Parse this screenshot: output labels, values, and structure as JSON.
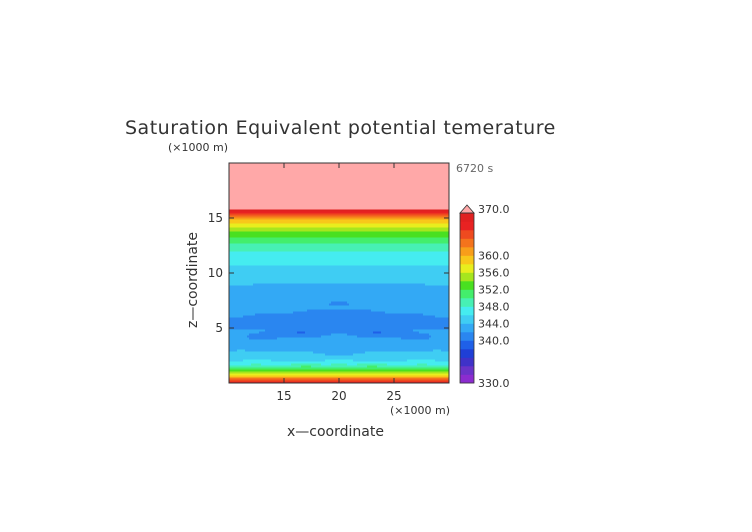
{
  "chart_data": {
    "type": "heatmap",
    "title": "Saturation Equivalent potential temerature",
    "time_label": "6720 s",
    "xlabel": "x—coordinate",
    "ylabel": "z—coordinate",
    "x_unit": "(×1000 m)",
    "y_unit": "(×1000 m)",
    "xlim": [
      10,
      30
    ],
    "ylim": [
      0,
      20
    ],
    "x_ticks": [
      "15",
      "20",
      "25"
    ],
    "x_tick_values": [
      15,
      20,
      25
    ],
    "y_ticks": [
      "5",
      "10",
      "15"
    ],
    "y_tick_values": [
      5,
      10,
      15
    ],
    "colorbar": {
      "min": 330,
      "max": 370,
      "step": 2,
      "labels": [
        "370.0",
        "360.0",
        "356.0",
        "352.0",
        "348.0",
        "344.0",
        "340.0",
        "330.0"
      ],
      "label_values": [
        370,
        360,
        356,
        352,
        348,
        344,
        340,
        330
      ],
      "extend": "max",
      "colors": [
        "#8b2ccf",
        "#6a33c8",
        "#3f32c8",
        "#1f3fd6",
        "#1f60e8",
        "#2a86f0",
        "#33a9f5",
        "#3fcdf3",
        "#45ecf0",
        "#47f0b4",
        "#43ee6c",
        "#49e020",
        "#a6e61e",
        "#e8ee1e",
        "#f8c81a",
        "#f89e1a",
        "#f4731c",
        "#ef4a1f",
        "#e82222",
        "#e02020"
      ],
      "over_color": "#ffa8a8"
    },
    "profile": [
      {
        "z": 0.0,
        "v": 367
      },
      {
        "z": 0.5,
        "v": 362
      },
      {
        "z": 1.0,
        "v": 354
      },
      {
        "z": 1.5,
        "v": 349
      },
      {
        "z": 2.0,
        "v": 346
      },
      {
        "z": 3.0,
        "v": 344
      },
      {
        "z": 4.0,
        "v": 342.5
      },
      {
        "z": 5.0,
        "v": 342
      },
      {
        "z": 6.0,
        "v": 342
      },
      {
        "z": 7.0,
        "v": 343
      },
      {
        "z": 8.0,
        "v": 343.5
      },
      {
        "z": 9.0,
        "v": 344
      },
      {
        "z": 10.0,
        "v": 345
      },
      {
        "z": 11.0,
        "v": 346.5
      },
      {
        "z": 12.0,
        "v": 348
      },
      {
        "z": 13.0,
        "v": 351
      },
      {
        "z": 14.0,
        "v": 355
      },
      {
        "z": 15.0,
        "v": 360
      },
      {
        "z": 15.5,
        "v": 366
      },
      {
        "z": 16.0,
        "v": 372
      },
      {
        "z": 20.0,
        "v": 372
      }
    ],
    "anomalies": [
      {
        "x": 16.5,
        "z": 4.6,
        "a": -2.2,
        "sx": 1.8,
        "sz": 0.35
      },
      {
        "x": 23.5,
        "z": 4.6,
        "a": -2.2,
        "sx": 1.8,
        "sz": 0.35
      },
      {
        "x": 20.0,
        "z": 5.3,
        "a": -2.0,
        "sx": 3.2,
        "sz": 0.5
      },
      {
        "x": 20.0,
        "z": 6.4,
        "a": -1.8,
        "sx": 3.5,
        "sz": 0.4
      },
      {
        "x": 14.0,
        "z": 6.0,
        "a": -1.6,
        "sx": 1.6,
        "sz": 0.3
      },
      {
        "x": 26.0,
        "z": 6.0,
        "a": -1.6,
        "sx": 1.6,
        "sz": 0.3
      },
      {
        "x": 20.0,
        "z": 7.3,
        "a": -1.3,
        "sx": 2.8,
        "sz": 0.35
      },
      {
        "x": 19.0,
        "z": 8.8,
        "a": -1.5,
        "sx": 0.8,
        "sz": 0.25
      },
      {
        "x": 21.0,
        "z": 8.8,
        "a": -1.5,
        "sx": 0.8,
        "sz": 0.25
      },
      {
        "x": 20.0,
        "z": 9.9,
        "a": -0.8,
        "sx": 1.5,
        "sz": 0.3
      },
      {
        "x": 13.0,
        "z": 4.2,
        "a": -1.4,
        "sx": 1.2,
        "sz": 0.3
      },
      {
        "x": 27.0,
        "z": 4.2,
        "a": -1.4,
        "sx": 1.2,
        "sz": 0.3
      },
      {
        "x": 20.0,
        "z": 2.7,
        "a": -1.0,
        "sx": 2.5,
        "sz": 0.4
      },
      {
        "x": 17.0,
        "z": 1.6,
        "a": 1.5,
        "sx": 1.2,
        "sz": 0.3
      },
      {
        "x": 23.0,
        "z": 1.6,
        "a": 1.5,
        "sx": 1.2,
        "sz": 0.3
      },
      {
        "x": 20.0,
        "z": 2.0,
        "a": 1.2,
        "sx": 1.0,
        "sz": 0.3
      },
      {
        "x": 12.5,
        "z": 2.0,
        "a": 1.0,
        "sx": 1.0,
        "sz": 0.3
      },
      {
        "x": 27.5,
        "z": 2.0,
        "a": 1.0,
        "sx": 1.0,
        "sz": 0.3
      }
    ]
  }
}
